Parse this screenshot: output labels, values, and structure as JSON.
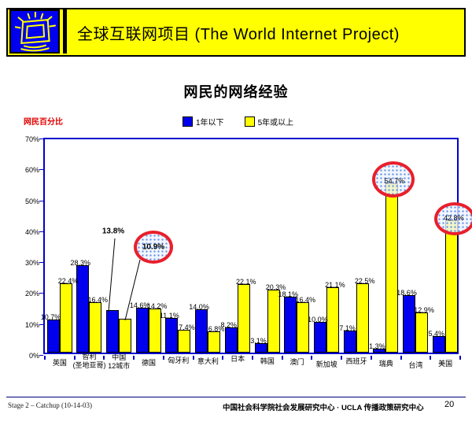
{
  "header": {
    "title": "全球互联网项目 (The World Internet Project)",
    "logo_icon": "monitor-rays-icon",
    "band_color": "#FFFF00",
    "logo_color": "#0000EE"
  },
  "chart_data": {
    "type": "bar",
    "title": "网民的网络经验",
    "ylabel": "网民百分比",
    "xlabel": "",
    "ylim": [
      0,
      70
    ],
    "ytick_step": 10,
    "ytick_suffix": "%",
    "grid": false,
    "legend_position": "top",
    "axis_color": "#0000CC",
    "categories": [
      "英国",
      "智利\n(圣地亚哥)",
      "中国\n12城市",
      "德国",
      "匈牙利",
      "意大利",
      "日本",
      "韩国",
      "澳门",
      "新加坡",
      "西班牙",
      "瑞典",
      "台湾",
      "美国"
    ],
    "series": [
      {
        "name": "1年以下",
        "color": "#0000EE",
        "values": [
          10.7,
          28.3,
          13.8,
          14.6,
          11.1,
          14.0,
          8.2,
          3.1,
          18.1,
          10.0,
          7.1,
          1.3,
          18.6,
          5.4
        ]
      },
      {
        "name": "5年或以上",
        "color": "#FFFF00",
        "values": [
          22.4,
          16.4,
          10.9,
          14.2,
          7.4,
          6.8,
          22.1,
          20.3,
          16.4,
          21.1,
          22.5,
          54.7,
          12.9,
          42.8
        ]
      }
    ],
    "annotations": [
      {
        "kind": "bold-callout",
        "series": 0,
        "category_index": 2,
        "value_label": "13.8%"
      },
      {
        "kind": "red-circle",
        "series": 1,
        "category_index": 2,
        "value_label": "10.9%",
        "detached": true
      },
      {
        "kind": "red-circle",
        "series": 1,
        "category_index": 11,
        "value_label": "54.7%"
      },
      {
        "kind": "red-circle",
        "series": 1,
        "category_index": 13,
        "value_label": "42.8%"
      }
    ],
    "highlight_color": "#E8202C"
  },
  "footer": {
    "left": "Stage 2 – Catchup (10-14-03)",
    "center": "中国社会科学院社会发展研究中心 · UCLA 传播政策研究中心",
    "page": "20"
  }
}
